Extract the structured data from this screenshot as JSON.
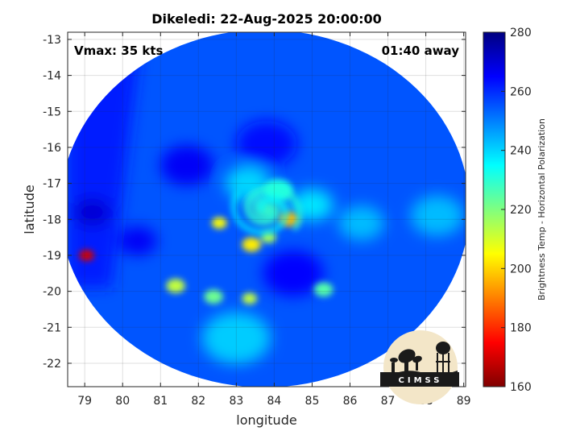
{
  "title": "Dikeledi: 22-Aug-2025 20:00:00",
  "annotations": {
    "vmax": "Vmax: 35 kts",
    "time_away": "01:40 away"
  },
  "logo": {
    "text": "CIMSS"
  },
  "chart_data": {
    "type": "heatmap",
    "title": "Dikeledi: 22-Aug-2025 20:00:00",
    "xlabel": "longitude",
    "ylabel": "latitude",
    "xlim": [
      78.55,
      89.05
    ],
    "ylim": [
      -22.65,
      -12.8
    ],
    "xticks": [
      79,
      80,
      81,
      82,
      83,
      84,
      85,
      86,
      87,
      88,
      89
    ],
    "yticks": [
      -13,
      -14,
      -15,
      -16,
      -17,
      -18,
      -19,
      -20,
      -21,
      -22
    ],
    "grid": true,
    "colorbar": {
      "label": "Brightness Temp - Horizontal Polarization",
      "range": [
        160,
        280
      ],
      "ticks": [
        160,
        180,
        200,
        220,
        240,
        260,
        280
      ],
      "colormap": "jet"
    },
    "swath": {
      "center": [
        83.75,
        -17.7
      ],
      "radius_deg": 5.4,
      "swath_edge_west_lon_top": 80.5,
      "swath_edge_west_lon_bottom": 79.7
    },
    "background_tb": 255,
    "features": [
      {
        "name": "cyclone-center-core",
        "lon": 83.8,
        "lat": -17.75,
        "tb": 228,
        "radius_deg": 0.45
      },
      {
        "name": "spiral-band-north",
        "lon": 84.1,
        "lat": -17.2,
        "tb": 232,
        "radius_deg": 0.4
      },
      {
        "name": "convective-cell-east",
        "lon": 84.4,
        "lat": -18.0,
        "tb": 196,
        "radius_deg": 0.25
      },
      {
        "name": "convective-cell-west",
        "lon": 82.55,
        "lat": -18.1,
        "tb": 205,
        "radius_deg": 0.2
      },
      {
        "name": "convective-cell-south",
        "lon": 83.4,
        "lat": -18.7,
        "tb": 203,
        "radius_deg": 0.25
      },
      {
        "name": "convective-cell-south-2",
        "lon": 83.85,
        "lat": -18.5,
        "tb": 215,
        "radius_deg": 0.2
      },
      {
        "name": "rainband-south-1",
        "lon": 81.4,
        "lat": -19.85,
        "tb": 212,
        "radius_deg": 0.25
      },
      {
        "name": "rainband-south-2",
        "lon": 82.4,
        "lat": -20.15,
        "tb": 222,
        "radius_deg": 0.25
      },
      {
        "name": "rainband-south-3",
        "lon": 83.35,
        "lat": -20.2,
        "tb": 212,
        "radius_deg": 0.2
      },
      {
        "name": "rainband-south-4",
        "lon": 85.3,
        "lat": -19.95,
        "tb": 225,
        "radius_deg": 0.25
      },
      {
        "name": "convective-cell-far-west",
        "lon": 79.05,
        "lat": -19.0,
        "tb": 170,
        "radius_deg": 0.2
      },
      {
        "name": "inner-ring-north",
        "lon": 83.3,
        "lat": -17.0,
        "tb": 240,
        "radius_deg": 0.6
      },
      {
        "name": "inner-ring-east",
        "lon": 85.0,
        "lat": -17.6,
        "tb": 238,
        "radius_deg": 0.55
      },
      {
        "name": "band-east-outer",
        "lon": 86.3,
        "lat": -18.1,
        "tb": 243,
        "radius_deg": 0.6
      },
      {
        "name": "warm-clear-northwest",
        "lon": 81.7,
        "lat": -16.5,
        "tb": 266,
        "radius_deg": 0.7
      },
      {
        "name": "warm-clear-north",
        "lon": 83.8,
        "lat": -15.9,
        "tb": 264,
        "radius_deg": 0.8
      },
      {
        "name": "warm-clear-south",
        "lon": 84.5,
        "lat": -19.5,
        "tb": 265,
        "radius_deg": 0.8
      },
      {
        "name": "warm-clear-west",
        "lon": 80.4,
        "lat": -18.6,
        "tb": 266,
        "radius_deg": 0.5
      },
      {
        "name": "cold-area-southwest",
        "lon": 83.0,
        "lat": -21.3,
        "tb": 241,
        "radius_deg": 0.9
      },
      {
        "name": "cold-area-east",
        "lon": 88.3,
        "lat": -17.9,
        "tb": 243,
        "radius_deg": 0.7
      },
      {
        "name": "outside-swath-west-strip",
        "lon": 79.2,
        "lat": -17.8,
        "tb": 270,
        "radius_deg": 0.5
      }
    ]
  }
}
